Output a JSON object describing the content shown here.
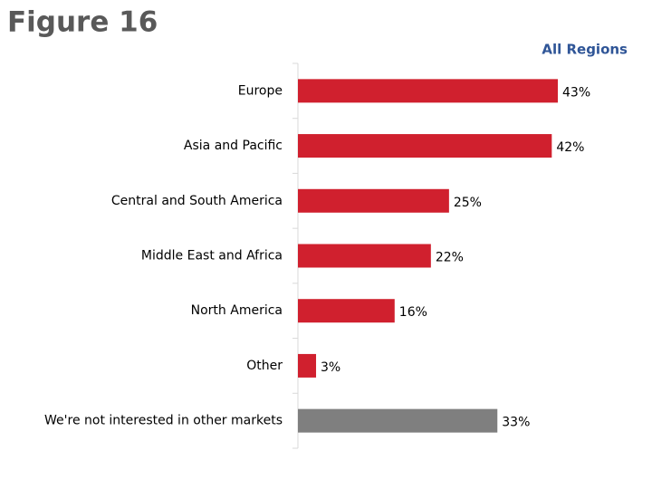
{
  "chart_data": {
    "type": "bar",
    "orientation": "horizontal",
    "title": "Figure 16",
    "subtitle": "All Regions",
    "categories": [
      "Europe",
      "Asia and Pacific",
      "Central and South America",
      "Middle East and Africa",
      "North America",
      "Other",
      "We're not interested in other markets"
    ],
    "values": [
      43,
      42,
      25,
      22,
      16,
      3,
      33
    ],
    "value_labels": [
      "43%",
      "42%",
      "25%",
      "22%",
      "16%",
      "3%",
      "33%"
    ],
    "colors": [
      "#d0202e",
      "#d0202e",
      "#d0202e",
      "#d0202e",
      "#d0202e",
      "#d0202e",
      "#7f7f7f"
    ]
  }
}
